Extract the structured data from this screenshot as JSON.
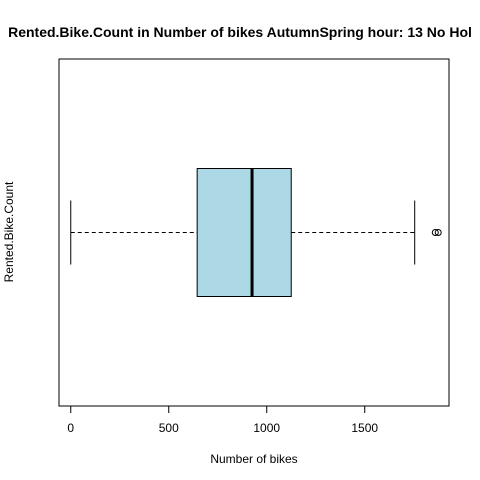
{
  "chart_data": {
    "type": "boxplot",
    "orientation": "horizontal",
    "title": "Rented.Bike.Count in Number of bikes AutumnSpring hour: 13 No Hol",
    "xlabel": "Number of bikes",
    "ylabel": "Rented.Bike.Count",
    "xlim": [
      -60,
      1930
    ],
    "xticks": [
      0,
      500,
      1000,
      1500
    ],
    "xtick_labels": [
      "0",
      "500",
      "1000",
      "1500"
    ],
    "box": {
      "min": 0,
      "q1": 645,
      "median": 925,
      "q3": 1125,
      "max": 1755,
      "outliers": [
        1860,
        1875
      ]
    },
    "box_fill": "#add8e6",
    "whisker_style": "dashed",
    "grid": false
  }
}
